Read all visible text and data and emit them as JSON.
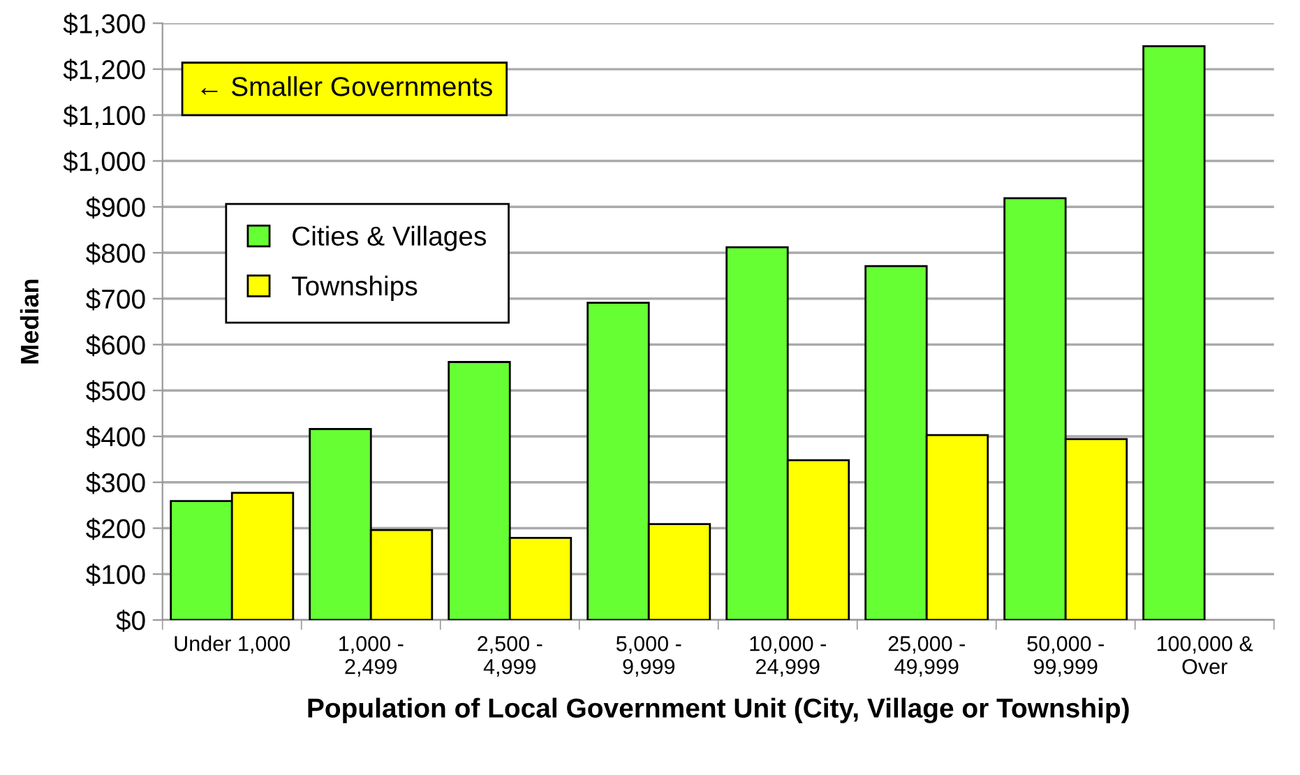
{
  "chart_data": {
    "type": "bar",
    "xlabel": "Population of Local Government Unit (City, Village or Township)",
    "ylabel": "Median",
    "categories": [
      "Under 1,000",
      "1,000 -\n2,499",
      "2,500 -\n4,999",
      "5,000 -\n9,999",
      "10,000 -\n24,999",
      "25,000 -\n49,999",
      "50,000 -\n99,999",
      "100,000 &\nOver"
    ],
    "series": [
      {
        "name": "Cities & Villages",
        "color": "#66ff33",
        "values": [
          259,
          416,
          562,
          691,
          812,
          771,
          919,
          1250
        ]
      },
      {
        "name": "Townships",
        "color": "#ffff00",
        "values": [
          277,
          196,
          179,
          209,
          348,
          403,
          394,
          null
        ]
      }
    ],
    "ylim": [
      0,
      1300
    ],
    "yticks": [
      {
        "value": 0,
        "label": "$0"
      },
      {
        "value": 100,
        "label": "$100"
      },
      {
        "value": 200,
        "label": "$200"
      },
      {
        "value": 300,
        "label": "$300"
      },
      {
        "value": 400,
        "label": "$400"
      },
      {
        "value": 500,
        "label": "$500"
      },
      {
        "value": 600,
        "label": "$600"
      },
      {
        "value": 700,
        "label": "$700"
      },
      {
        "value": 800,
        "label": "$800"
      },
      {
        "value": 900,
        "label": "$900"
      },
      {
        "value": 1000,
        "label": "$1,000"
      },
      {
        "value": 1100,
        "label": "$1,100"
      },
      {
        "value": 1200,
        "label": "$1,200"
      },
      {
        "value": 1300,
        "label": "$1,300"
      }
    ],
    "annotations": [
      "← Smaller Governments"
    ],
    "grid": "y",
    "legend": "top left"
  }
}
